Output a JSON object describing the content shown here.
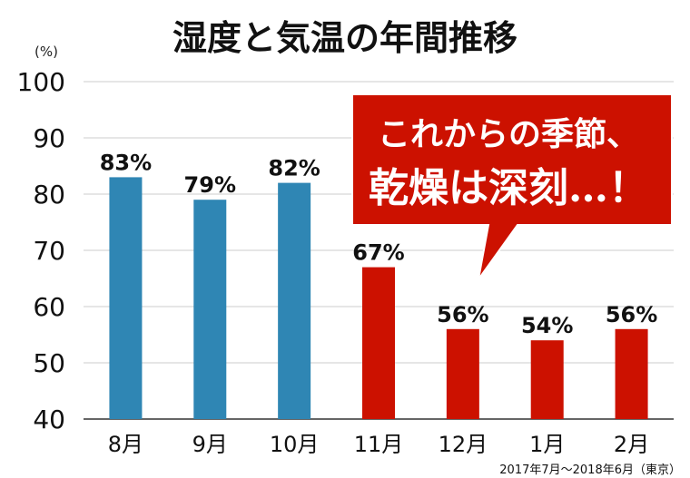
{
  "chart_data": {
    "type": "bar",
    "title": "湿度と気温の年間推移",
    "yunit": "(%)",
    "categories": [
      "8月",
      "9月",
      "10月",
      "11月",
      "12月",
      "1月",
      "2月"
    ],
    "values": [
      83,
      79,
      82,
      67,
      56,
      54,
      56
    ],
    "value_labels": [
      "83%",
      "79%",
      "82%",
      "67%",
      "56%",
      "54%",
      "56%"
    ],
    "yticks": [
      "100",
      "90",
      "80",
      "70",
      "60",
      "50",
      "40"
    ],
    "ylim": [
      40,
      100
    ],
    "grid": true,
    "source": "2017年7月〜2018年6月（東京）",
    "callout": {
      "line1": "これからの季節、",
      "line2": "乾燥は深刻…！"
    },
    "colors": {
      "blue": "#2f86b4",
      "red": "#cc1100",
      "callout_bg": "#cc1100"
    },
    "bar_colors": [
      "#2f86b4",
      "#2f86b4",
      "#2f86b4",
      "#cc1100",
      "#cc1100",
      "#cc1100",
      "#cc1100"
    ]
  }
}
